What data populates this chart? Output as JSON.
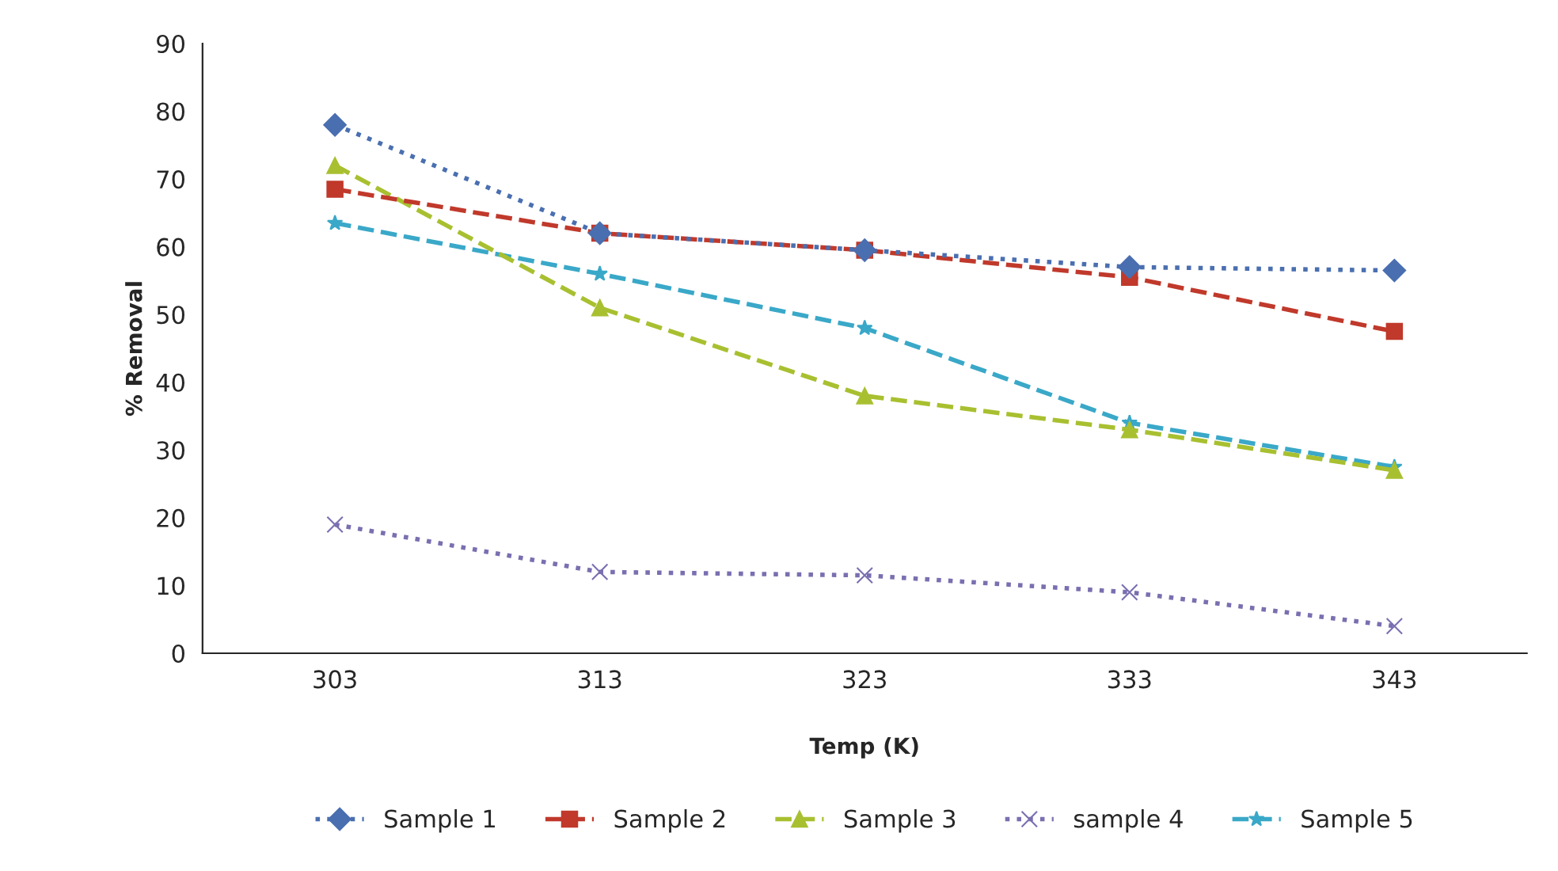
{
  "chart_data": {
    "type": "line",
    "xlabel": "Temp (K)",
    "ylabel": "% Removal",
    "categories": [
      "303",
      "313",
      "323",
      "333",
      "343"
    ],
    "ylim": [
      0,
      90
    ],
    "yticks": [
      0,
      10,
      20,
      30,
      40,
      50,
      60,
      70,
      80,
      90
    ],
    "grid": false,
    "legend": "bottom",
    "series": [
      {
        "name": "Sample 1",
        "color": "#4a6fb0",
        "marker": "diamond",
        "line_style": "dotted",
        "values": [
          78,
          62,
          59.5,
          57,
          56.5
        ]
      },
      {
        "name": "Sample 2",
        "color": "#c0392b",
        "marker": "square",
        "line_style": "dashed",
        "values": [
          68.5,
          62,
          59.5,
          55.5,
          47.5
        ]
      },
      {
        "name": "Sample 3",
        "color": "#a8c030",
        "marker": "triangle",
        "line_style": "dashed",
        "values": [
          72,
          51,
          38,
          33,
          27
        ]
      },
      {
        "name": "sample 4",
        "color": "#7a6fb0",
        "marker": "cross",
        "line_style": "dotted",
        "values": [
          19,
          12,
          11.5,
          9,
          4
        ]
      },
      {
        "name": "Sample 5",
        "color": "#3aa8c8",
        "marker": "star",
        "line_style": "dashed",
        "values": [
          63.5,
          56,
          48,
          34,
          27.5
        ]
      }
    ]
  }
}
